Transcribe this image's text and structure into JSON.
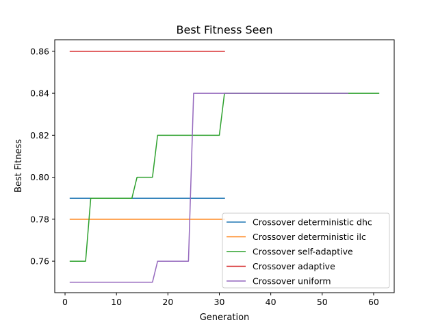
{
  "chart_data": {
    "type": "line",
    "title": "Best Fitness Seen",
    "xlabel": "Generation",
    "ylabel": "Best Fitness",
    "xlim": [
      -2.0,
      64.0
    ],
    "ylim": [
      0.745,
      0.8655
    ],
    "xticks": [
      0,
      10,
      20,
      30,
      40,
      50,
      60
    ],
    "xtick_labels": [
      "0",
      "10",
      "20",
      "30",
      "40",
      "50",
      "60"
    ],
    "yticks": [
      0.76,
      0.78,
      0.8,
      0.82,
      0.84,
      0.86
    ],
    "ytick_labels": [
      "0.76",
      "0.78",
      "0.80",
      "0.82",
      "0.84",
      "0.86"
    ],
    "grid": false,
    "legend_position": "lower-right",
    "series": [
      {
        "name": "Crossover deterministic dhc",
        "color": "#1f77b4",
        "x": [
          1,
          31
        ],
        "y": [
          0.79,
          0.79
        ]
      },
      {
        "name": "Crossover deterministic ilc",
        "color": "#ff7f0e",
        "x": [
          1,
          31
        ],
        "y": [
          0.78,
          0.78
        ]
      },
      {
        "name": "Crossover self-adaptive",
        "color": "#2ca02c",
        "x": [
          1,
          4,
          5,
          13,
          14,
          17,
          18,
          30,
          31,
          61
        ],
        "y": [
          0.76,
          0.76,
          0.79,
          0.79,
          0.8,
          0.8,
          0.82,
          0.82,
          0.84,
          0.84
        ]
      },
      {
        "name": "Crossover adaptive",
        "color": "#d62728",
        "x": [
          1,
          31
        ],
        "y": [
          0.86,
          0.86
        ]
      },
      {
        "name": "Crossover uniform",
        "color": "#9467bd",
        "x": [
          1,
          17,
          18,
          24,
          25,
          55
        ],
        "y": [
          0.75,
          0.75,
          0.76,
          0.76,
          0.84,
          0.84
        ]
      }
    ]
  }
}
